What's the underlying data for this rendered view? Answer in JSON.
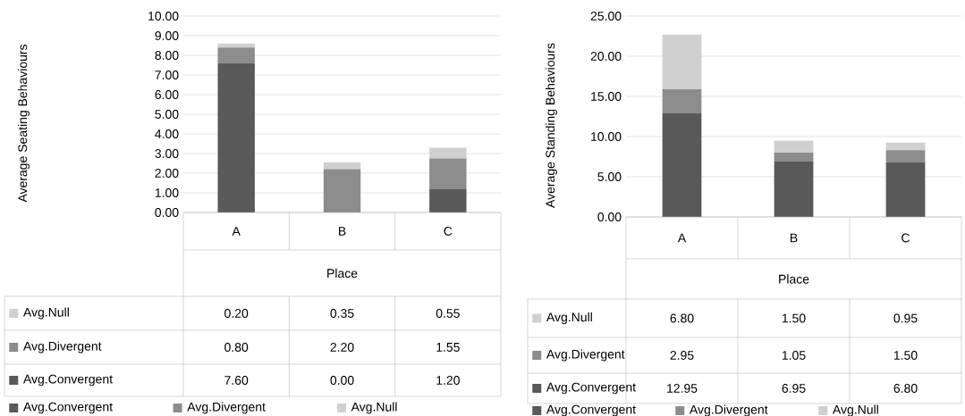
{
  "chart_data": [
    {
      "type": "bar",
      "stacked": true,
      "categories": [
        "A",
        "B",
        "C"
      ],
      "xlabel": "Place",
      "ylabel": "Average Seating Behaviours",
      "ylim": [
        0,
        10
      ],
      "yticks": [
        {
          "value": 0,
          "label": "0.00"
        },
        {
          "value": 1,
          "label": "1.00"
        },
        {
          "value": 2,
          "label": "2.00"
        },
        {
          "value": 3,
          "label": "3.00"
        },
        {
          "value": 4,
          "label": "4.00"
        },
        {
          "value": 5,
          "label": "5.00"
        },
        {
          "value": 6,
          "label": "6.00"
        },
        {
          "value": 7,
          "label": "7.00"
        },
        {
          "value": 8,
          "label": "8.00"
        },
        {
          "value": 9,
          "label": "9.00"
        },
        {
          "value": 10,
          "label": "10.00"
        }
      ],
      "grid": "y",
      "legend": "bottom",
      "series": [
        {
          "name": "Avg.Convergent",
          "color": "#595959",
          "values": [
            7.6,
            0.0,
            1.2
          ],
          "value_labels": [
            "7.60",
            "0.00",
            "1.20"
          ]
        },
        {
          "name": "Avg.Divergent",
          "color": "#8c8c8c",
          "values": [
            0.8,
            2.2,
            1.55
          ],
          "value_labels": [
            "0.80",
            "2.20",
            "1.55"
          ]
        },
        {
          "name": "Avg.Null",
          "color": "#d0d0d0",
          "values": [
            0.2,
            0.35,
            0.55
          ],
          "value_labels": [
            "0.20",
            "0.35",
            "0.55"
          ]
        }
      ]
    },
    {
      "type": "bar",
      "stacked": true,
      "categories": [
        "A",
        "B",
        "C"
      ],
      "xlabel": "Place",
      "ylabel": "Average Standing Behaviours",
      "ylim": [
        0,
        25
      ],
      "yticks": [
        {
          "value": 0,
          "label": "0.00"
        },
        {
          "value": 5,
          "label": "5.00"
        },
        {
          "value": 10,
          "label": "10.00"
        },
        {
          "value": 15,
          "label": "15.00"
        },
        {
          "value": 20,
          "label": "20.00"
        },
        {
          "value": 25,
          "label": "25.00"
        }
      ],
      "grid": "y",
      "legend": "bottom",
      "series": [
        {
          "name": "Avg.Convergent",
          "color": "#595959",
          "values": [
            12.95,
            6.95,
            6.8
          ],
          "value_labels": [
            "12.95",
            "6.95",
            "6.80"
          ]
        },
        {
          "name": "Avg.Divergent",
          "color": "#8c8c8c",
          "values": [
            2.95,
            1.05,
            1.5
          ],
          "value_labels": [
            "2.95",
            "1.05",
            "1.50"
          ]
        },
        {
          "name": "Avg.Null",
          "color": "#d0d0d0",
          "values": [
            6.8,
            1.5,
            0.95
          ],
          "value_labels": [
            "6.80",
            "1.50",
            "0.95"
          ]
        }
      ]
    }
  ]
}
